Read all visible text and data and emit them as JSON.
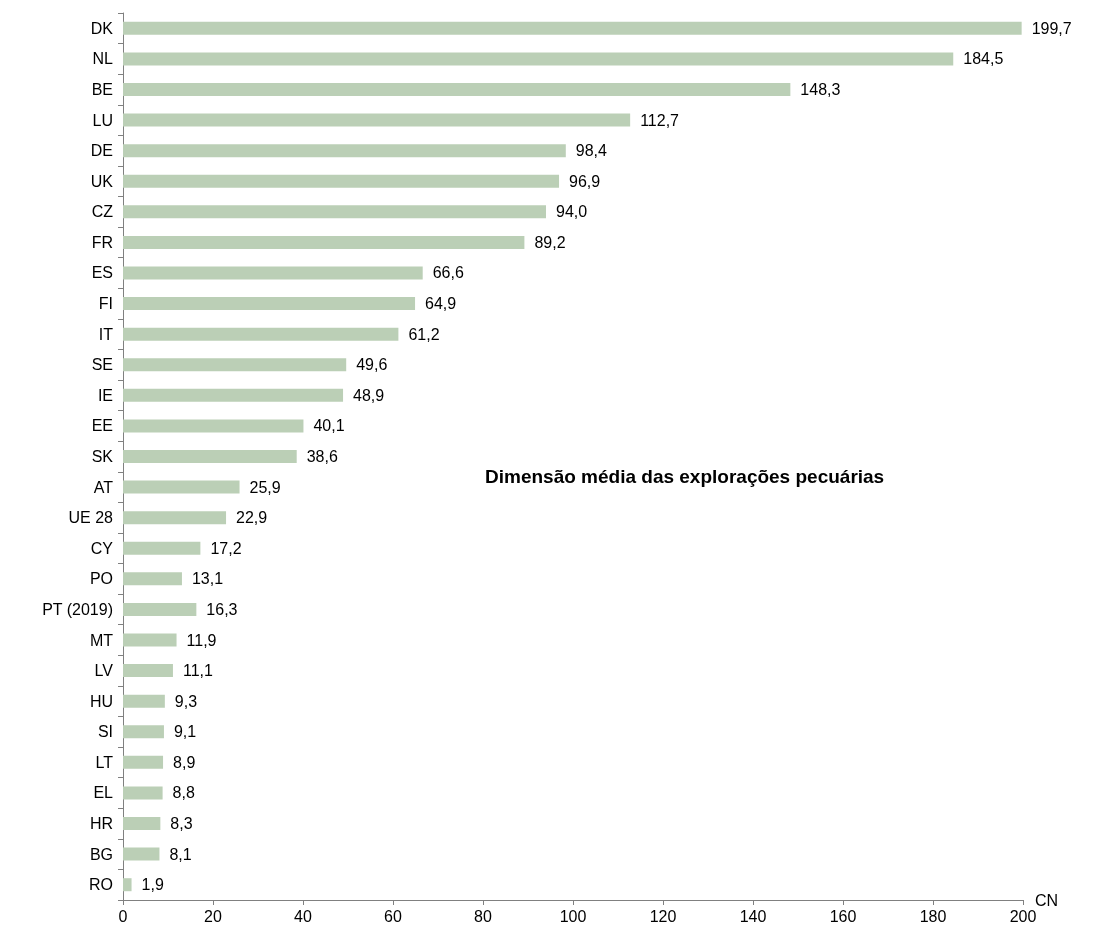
{
  "chart_data": {
    "type": "bar",
    "orientation": "horizontal",
    "title": "Dimensão média das explorações pecuárias",
    "xlabel": "CN",
    "categories": [
      "DK",
      "NL",
      "BE",
      "LU",
      "DE",
      "UK",
      "CZ",
      "FR",
      "ES",
      "FI",
      "IT",
      "SE",
      "IE",
      "EE",
      "SK",
      "AT",
      "UE 28",
      "CY",
      "PO",
      "PT (2019)",
      "MT",
      "LV",
      "HU",
      "SI",
      "LT",
      "EL",
      "HR",
      "BG",
      "RO"
    ],
    "values": [
      199.7,
      184.5,
      148.3,
      112.7,
      98.4,
      96.9,
      94.0,
      89.2,
      66.6,
      64.9,
      61.2,
      49.6,
      48.9,
      40.1,
      38.6,
      25.9,
      22.9,
      17.2,
      13.1,
      16.3,
      11.9,
      11.1,
      9.3,
      9.1,
      8.9,
      8.8,
      8.3,
      8.1,
      1.9
    ],
    "value_labels": [
      "199,7",
      "184,5",
      "148,3",
      "112,7",
      "98,4",
      "96,9",
      "94,0",
      "89,2",
      "66,6",
      "64,9",
      "61,2",
      "49,6",
      "48,9",
      "40,1",
      "38,6",
      "25,9",
      "22,9",
      "17,2",
      "13,1",
      "16,3",
      "11,9",
      "11,1",
      "9,3",
      "9,1",
      "8,9",
      "8,8",
      "8,3",
      "8,1",
      "1,9"
    ],
    "color": "#bbcfb6",
    "xlim": [
      0,
      200
    ],
    "xticks": [
      0,
      20,
      40,
      60,
      80,
      100,
      120,
      140,
      160,
      180,
      200
    ],
    "grid": false
  }
}
